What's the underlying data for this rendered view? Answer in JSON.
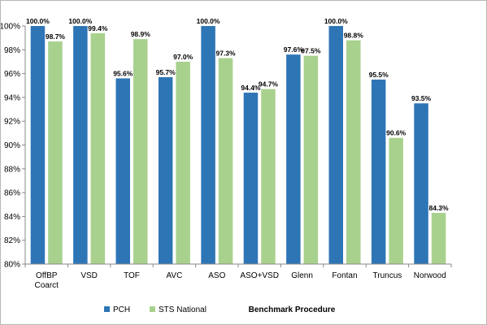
{
  "chart_data": {
    "type": "bar",
    "categories": [
      [
        "OffBP",
        "Coarct"
      ],
      [
        "VSD"
      ],
      [
        "TOF"
      ],
      [
        "AVC"
      ],
      [
        "ASO"
      ],
      [
        "ASO+VSD"
      ],
      [
        "Glenn"
      ],
      [
        "Fontan"
      ],
      [
        "Truncus"
      ],
      [
        "Norwood"
      ]
    ],
    "series": [
      {
        "name": "PCH",
        "color": "#2e75b6",
        "values": [
          100.0,
          100.0,
          95.6,
          95.7,
          100.0,
          94.4,
          97.6,
          100.0,
          95.5,
          93.5
        ],
        "labels": [
          "100.0%",
          "100.0%",
          "95.6%",
          "95.7%",
          "100.0%",
          "94.4%",
          "97.6%",
          "100.0%",
          "95.5%",
          "93.5%"
        ]
      },
      {
        "name": "STS National",
        "color": "#a9d18e",
        "values": [
          98.7,
          99.4,
          98.9,
          97.0,
          97.3,
          94.7,
          97.5,
          98.8,
          90.6,
          84.3
        ],
        "labels": [
          "98.7%",
          "99.4%",
          "98.9%",
          "97.0%",
          "97.3%",
          "94.7%",
          "97.5%",
          "98.8%",
          "90.6%",
          "84.3%"
        ]
      }
    ],
    "xlabel": "Benchmark Procedure",
    "ylabel": "",
    "ylim": [
      80,
      100
    ],
    "yticks": [
      80,
      82,
      84,
      86,
      88,
      90,
      92,
      94,
      96,
      98,
      100
    ],
    "ytick_labels": [
      "80%",
      "82%",
      "84%",
      "86%",
      "88%",
      "90%",
      "92%",
      "94%",
      "96%",
      "98%",
      "100%"
    ],
    "grid": false,
    "legend_position": "bottom-left"
  }
}
